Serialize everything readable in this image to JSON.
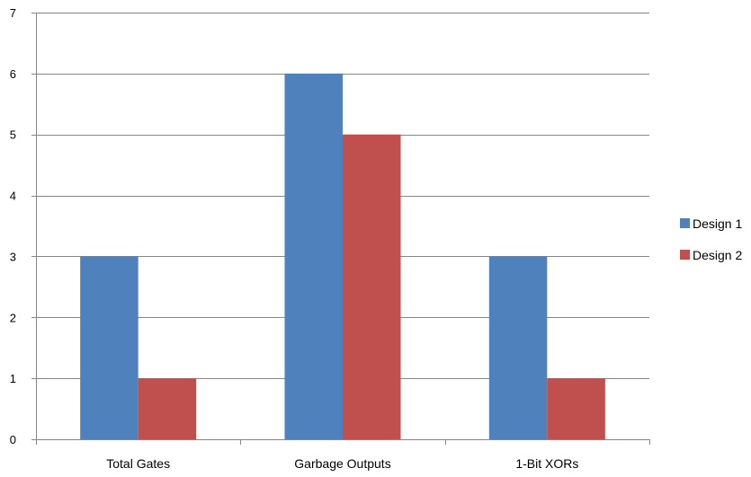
{
  "chart_data": {
    "type": "bar",
    "title": "",
    "xlabel": "",
    "ylabel": "",
    "categories": [
      "Total Gates",
      "Garbage Outputs",
      "1-Bit XORs"
    ],
    "series": [
      {
        "name": "Design 1",
        "values": [
          3,
          6,
          3
        ],
        "color": "#4F81BD"
      },
      {
        "name": "Design 2",
        "values": [
          1,
          5,
          1
        ],
        "color": "#C0504D"
      }
    ],
    "ylim": [
      0,
      7
    ],
    "yticks": [
      0,
      1,
      2,
      3,
      4,
      5,
      6,
      7
    ],
    "grid": true,
    "legend_position": "right"
  }
}
